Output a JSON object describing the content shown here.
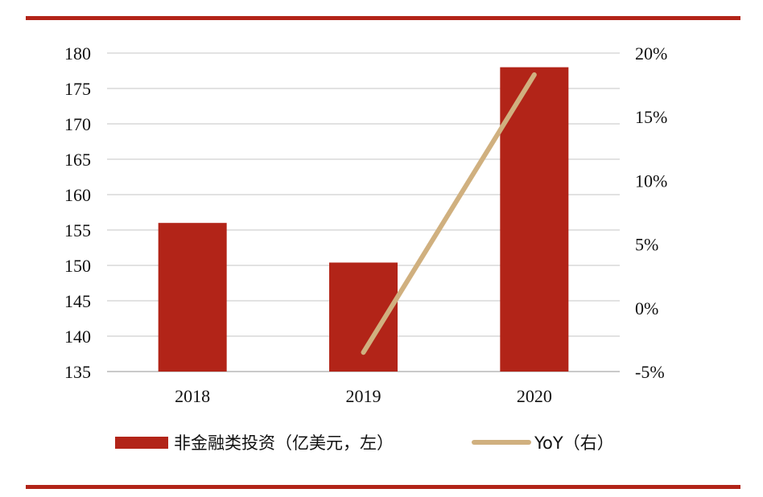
{
  "chart_data": {
    "type": "bar",
    "categories": [
      "2018",
      "2019",
      "2020"
    ],
    "series": [
      {
        "name": "非金融类投资（亿美元，左）",
        "type": "bar",
        "axis": "left",
        "color": "#b22418",
        "values": [
          156,
          150.4,
          178
        ]
      },
      {
        "name": "YoY（右）",
        "type": "line",
        "axis": "right",
        "color": "#d0b07f",
        "values": [
          null,
          -3.5,
          18.3
        ]
      }
    ],
    "left_axis": {
      "min": 135,
      "max": 180,
      "step": 5,
      "ticks": [
        "180",
        "175",
        "170",
        "165",
        "160",
        "155",
        "150",
        "145",
        "140",
        "135"
      ]
    },
    "right_axis": {
      "min": -5,
      "max": 20,
      "step": 5,
      "ticks": [
        "20%",
        "15%",
        "10%",
        "5%",
        "0%",
        "-5%"
      ]
    },
    "grid": true,
    "legend_position": "bottom"
  },
  "colors": {
    "accent_rule": "#b22418",
    "gridline": "#d9d9d9"
  }
}
